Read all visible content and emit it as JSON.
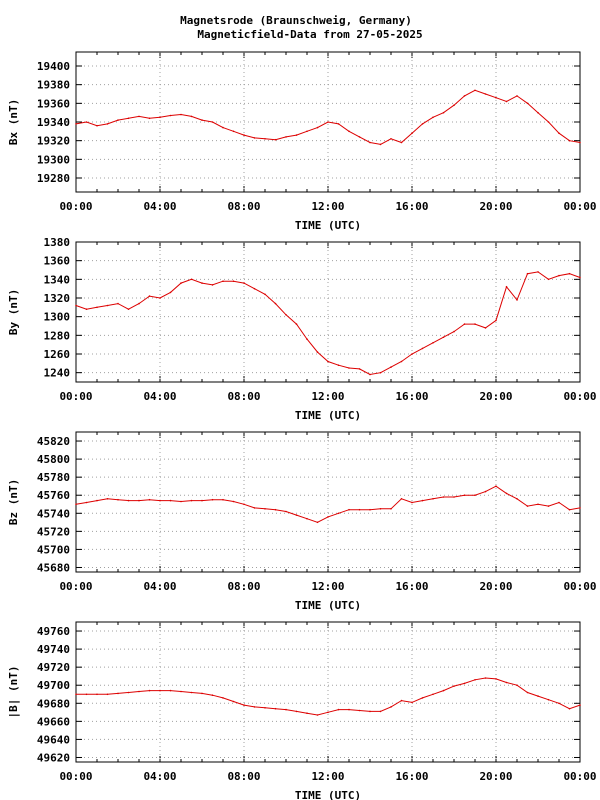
{
  "figure": {
    "title_line1": "Magnetsrode (Braunschweig, Germany)",
    "title_line2": "Magneticfield-Data from 27-05-2025"
  },
  "chart_data": [
    {
      "type": "line",
      "ylabel": "Bx (nT)",
      "xlabel": "TIME (UTC)",
      "xlim": [
        0,
        24
      ],
      "ylim": [
        19265,
        19415
      ],
      "yticks": [
        19280,
        19300,
        19320,
        19340,
        19360,
        19380,
        19400
      ],
      "xticks": [
        "00:00",
        "04:00",
        "08:00",
        "12:00",
        "16:00",
        "20:00",
        "00:00"
      ],
      "grid": true,
      "series": [
        {
          "color": "#dd0000",
          "x": [
            0,
            0.5,
            1,
            1.5,
            2,
            2.5,
            3,
            3.5,
            4,
            4.5,
            5,
            5.5,
            6,
            6.5,
            7,
            7.5,
            8,
            8.5,
            9,
            9.5,
            10,
            10.5,
            11,
            11.5,
            12,
            12.5,
            13,
            13.5,
            14,
            14.5,
            15,
            15.5,
            16,
            16.5,
            17,
            17.5,
            18,
            18.5,
            19,
            19.5,
            20,
            20.5,
            21,
            21.5,
            22,
            22.5,
            23,
            23.5,
            24
          ],
          "y": [
            19338,
            19340,
            19336,
            19338,
            19342,
            19344,
            19346,
            19344,
            19345,
            19347,
            19348,
            19346,
            19342,
            19340,
            19334,
            19330,
            19326,
            19323,
            19322,
            19321,
            19324,
            19326,
            19330,
            19334,
            19340,
            19338,
            19330,
            19324,
            19318,
            19316,
            19322,
            19318,
            19328,
            19338,
            19345,
            19350,
            19358,
            19368,
            19374,
            19370,
            19366,
            19362,
            19368,
            19360,
            19350,
            19340,
            19328,
            19320,
            19318
          ]
        }
      ]
    },
    {
      "type": "line",
      "ylabel": "By (nT)",
      "xlabel": "TIME (UTC)",
      "xlim": [
        0,
        24
      ],
      "ylim": [
        1230,
        1380
      ],
      "yticks": [
        1240,
        1260,
        1280,
        1300,
        1320,
        1340,
        1360,
        1380
      ],
      "xticks": [
        "00:00",
        "04:00",
        "08:00",
        "12:00",
        "16:00",
        "20:00",
        "00:00"
      ],
      "grid": true,
      "series": [
        {
          "color": "#dd0000",
          "x": [
            0,
            0.5,
            1,
            1.5,
            2,
            2.5,
            3,
            3.5,
            4,
            4.5,
            5,
            5.5,
            6,
            6.5,
            7,
            7.5,
            8,
            8.5,
            9,
            9.5,
            10,
            10.5,
            11,
            11.5,
            12,
            12.5,
            13,
            13.5,
            14,
            14.5,
            15,
            15.5,
            16,
            16.5,
            17,
            17.5,
            18,
            18.5,
            19,
            19.5,
            20,
            20.5,
            21,
            21.5,
            22,
            22.5,
            23,
            23.5,
            24
          ],
          "y": [
            1312,
            1308,
            1310,
            1312,
            1314,
            1308,
            1314,
            1322,
            1320,
            1326,
            1336,
            1340,
            1336,
            1334,
            1338,
            1338,
            1336,
            1330,
            1324,
            1314,
            1302,
            1292,
            1276,
            1262,
            1252,
            1248,
            1245,
            1244,
            1238,
            1240,
            1246,
            1252,
            1260,
            1266,
            1272,
            1278,
            1284,
            1292,
            1292,
            1288,
            1296,
            1332,
            1318,
            1346,
            1348,
            1340,
            1344,
            1346,
            1342
          ]
        }
      ]
    },
    {
      "type": "line",
      "ylabel": "Bz (nT)",
      "xlabel": "TIME (UTC)",
      "xlim": [
        0,
        24
      ],
      "ylim": [
        45675,
        45830
      ],
      "yticks": [
        45680,
        45700,
        45720,
        45740,
        45760,
        45780,
        45800,
        45820
      ],
      "xticks": [
        "00:00",
        "04:00",
        "08:00",
        "12:00",
        "16:00",
        "20:00",
        "00:00"
      ],
      "grid": true,
      "series": [
        {
          "color": "#dd0000",
          "x": [
            0,
            0.5,
            1,
            1.5,
            2,
            2.5,
            3,
            3.5,
            4,
            4.5,
            5,
            5.5,
            6,
            6.5,
            7,
            7.5,
            8,
            8.5,
            9,
            9.5,
            10,
            10.5,
            11,
            11.5,
            12,
            12.5,
            13,
            13.5,
            14,
            14.5,
            15,
            15.5,
            16,
            16.5,
            17,
            17.5,
            18,
            18.5,
            19,
            19.5,
            20,
            20.5,
            21,
            21.5,
            22,
            22.5,
            23,
            23.5,
            24
          ],
          "y": [
            45750,
            45752,
            45754,
            45756,
            45755,
            45754,
            45754,
            45755,
            45754,
            45754,
            45753,
            45754,
            45754,
            45755,
            45755,
            45753,
            45750,
            45746,
            45745,
            45744,
            45742,
            45738,
            45734,
            45730,
            45736,
            45740,
            45744,
            45744,
            45744,
            45745,
            45745,
            45756,
            45752,
            45754,
            45756,
            45758,
            45758,
            45760,
            45760,
            45764,
            45770,
            45762,
            45756,
            45748,
            45750,
            45748,
            45752,
            45744,
            45746
          ]
        }
      ]
    },
    {
      "type": "line",
      "ylabel": "|B| (nT)",
      "xlabel": "TIME (UTC)",
      "xlim": [
        0,
        24
      ],
      "ylim": [
        49615,
        49770
      ],
      "yticks": [
        49620,
        49640,
        49660,
        49680,
        49700,
        49720,
        49740,
        49760
      ],
      "xticks": [
        "00:00",
        "04:00",
        "08:00",
        "12:00",
        "16:00",
        "20:00",
        "00:00"
      ],
      "grid": true,
      "series": [
        {
          "color": "#dd0000",
          "x": [
            0,
            0.5,
            1,
            1.5,
            2,
            2.5,
            3,
            3.5,
            4,
            4.5,
            5,
            5.5,
            6,
            6.5,
            7,
            7.5,
            8,
            8.5,
            9,
            9.5,
            10,
            10.5,
            11,
            11.5,
            12,
            12.5,
            13,
            13.5,
            14,
            14.5,
            15,
            15.5,
            16,
            16.5,
            17,
            17.5,
            18,
            18.5,
            19,
            19.5,
            20,
            20.5,
            21,
            21.5,
            22,
            22.5,
            23,
            23.5,
            24
          ],
          "y": [
            49690,
            49690,
            49690,
            49690,
            49691,
            49692,
            49693,
            49694,
            49694,
            49694,
            49693,
            49692,
            49691,
            49689,
            49686,
            49682,
            49678,
            49676,
            49675,
            49674,
            49673,
            49671,
            49669,
            49667,
            49670,
            49673,
            49673,
            49672,
            49671,
            49671,
            49676,
            49683,
            49681,
            49686,
            49690,
            49694,
            49699,
            49702,
            49706,
            49708,
            49707,
            49703,
            49700,
            49692,
            49688,
            49684,
            49680,
            49674,
            49678
          ]
        }
      ]
    }
  ]
}
